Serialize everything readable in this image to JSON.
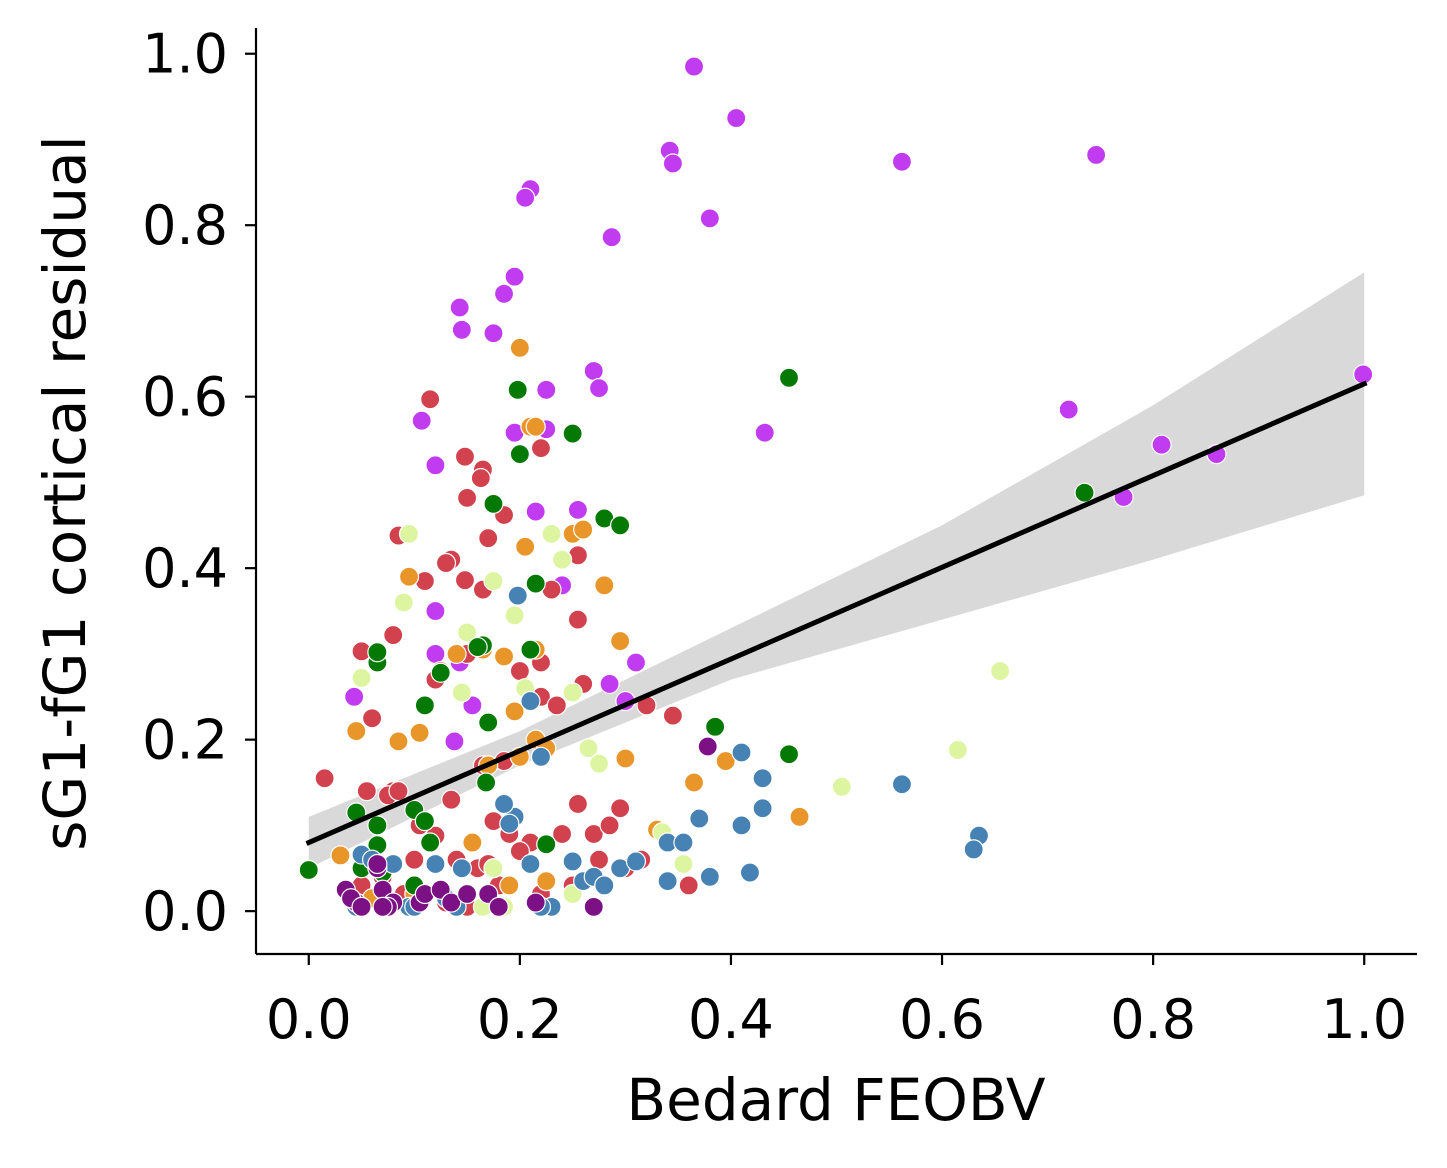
{
  "chart_data": {
    "type": "scatter",
    "title": "",
    "xlabel": "Bedard FEOBV",
    "ylabel": "sG1-fG1 cortical residual",
    "xlim": [
      -0.05,
      1.05
    ],
    "ylim": [
      -0.05,
      1.03
    ],
    "xticks": [
      "0.0",
      "0.2",
      "0.4",
      "0.6",
      "0.8",
      "1.0"
    ],
    "yticks": [
      "0.0",
      "0.2",
      "0.4",
      "0.6",
      "0.8",
      "1.0"
    ],
    "grid": false,
    "legend": "none",
    "regression": {
      "color": "#000000",
      "band_color": "#d9d9d9",
      "line": [
        [
          0.0,
          0.08
        ],
        [
          1.0,
          0.615
        ]
      ],
      "band_upper": [
        [
          0.0,
          0.11
        ],
        [
          0.2,
          0.21
        ],
        [
          0.4,
          0.33
        ],
        [
          0.6,
          0.45
        ],
        [
          0.8,
          0.59
        ],
        [
          1.0,
          0.745
        ]
      ],
      "band_lower": [
        [
          0.0,
          0.05
        ],
        [
          0.2,
          0.17
        ],
        [
          0.4,
          0.27
        ],
        [
          0.6,
          0.34
        ],
        [
          0.8,
          0.41
        ],
        [
          1.0,
          0.485
        ]
      ]
    },
    "series": [
      {
        "color": "#c13bf0",
        "points": [
          [
            0.365,
            0.985
          ],
          [
            0.405,
            0.925
          ],
          [
            0.342,
            0.887
          ],
          [
            0.345,
            0.872
          ],
          [
            0.562,
            0.874
          ],
          [
            0.746,
            0.882
          ],
          [
            0.21,
            0.842
          ],
          [
            0.205,
            0.832
          ],
          [
            0.38,
            0.808
          ],
          [
            0.287,
            0.786
          ],
          [
            0.195,
            0.74
          ],
          [
            0.185,
            0.72
          ],
          [
            0.143,
            0.704
          ],
          [
            0.145,
            0.678
          ],
          [
            0.175,
            0.674
          ],
          [
            0.27,
            0.63
          ],
          [
            0.275,
            0.61
          ],
          [
            0.225,
            0.608
          ],
          [
            0.72,
            0.585
          ],
          [
            0.107,
            0.572
          ],
          [
            0.432,
            0.558
          ],
          [
            0.195,
            0.558
          ],
          [
            0.225,
            0.562
          ],
          [
            0.808,
            0.544
          ],
          [
            0.86,
            0.533
          ],
          [
            0.772,
            0.483
          ],
          [
            0.255,
            0.468
          ],
          [
            0.215,
            0.466
          ],
          [
            0.12,
            0.52
          ],
          [
            0.12,
            0.35
          ],
          [
            0.12,
            0.3
          ],
          [
            0.143,
            0.29
          ],
          [
            0.165,
            0.31
          ],
          [
            0.155,
            0.24
          ],
          [
            0.043,
            0.25
          ],
          [
            0.285,
            0.265
          ],
          [
            0.3,
            0.245
          ],
          [
            0.31,
            0.29
          ],
          [
            0.138,
            0.198
          ],
          [
            0.999,
            0.626
          ],
          [
            0.24,
            0.38
          ]
        ]
      },
      {
        "color": "#d1424e",
        "points": [
          [
            0.115,
            0.597
          ],
          [
            0.148,
            0.53
          ],
          [
            0.165,
            0.515
          ],
          [
            0.163,
            0.505
          ],
          [
            0.15,
            0.482
          ],
          [
            0.185,
            0.462
          ],
          [
            0.22,
            0.54
          ],
          [
            0.17,
            0.435
          ],
          [
            0.085,
            0.438
          ],
          [
            0.11,
            0.385
          ],
          [
            0.148,
            0.386
          ],
          [
            0.135,
            0.41
          ],
          [
            0.13,
            0.406
          ],
          [
            0.165,
            0.375
          ],
          [
            0.23,
            0.375
          ],
          [
            0.255,
            0.415
          ],
          [
            0.255,
            0.34
          ],
          [
            0.08,
            0.322
          ],
          [
            0.05,
            0.303
          ],
          [
            0.2,
            0.28
          ],
          [
            0.22,
            0.29
          ],
          [
            0.26,
            0.265
          ],
          [
            0.15,
            0.3
          ],
          [
            0.125,
            0.28
          ],
          [
            0.12,
            0.27
          ],
          [
            0.06,
            0.225
          ],
          [
            0.22,
            0.25
          ],
          [
            0.32,
            0.24
          ],
          [
            0.345,
            0.228
          ],
          [
            0.235,
            0.24
          ],
          [
            0.015,
            0.155
          ],
          [
            0.08,
            0.14
          ],
          [
            0.055,
            0.14
          ],
          [
            0.075,
            0.135
          ],
          [
            0.085,
            0.14
          ],
          [
            0.135,
            0.13
          ],
          [
            0.165,
            0.17
          ],
          [
            0.185,
            0.175
          ],
          [
            0.22,
            0.18
          ],
          [
            0.255,
            0.125
          ],
          [
            0.27,
            0.09
          ],
          [
            0.285,
            0.1
          ],
          [
            0.295,
            0.12
          ],
          [
            0.24,
            0.09
          ],
          [
            0.21,
            0.08
          ],
          [
            0.2,
            0.07
          ],
          [
            0.105,
            0.1
          ],
          [
            0.1,
            0.06
          ],
          [
            0.12,
            0.088
          ],
          [
            0.14,
            0.06
          ],
          [
            0.16,
            0.05
          ],
          [
            0.175,
            0.105
          ],
          [
            0.19,
            0.09
          ],
          [
            0.05,
            0.03
          ],
          [
            0.07,
            0.04
          ],
          [
            0.09,
            0.02
          ],
          [
            0.11,
            0.02
          ],
          [
            0.13,
            0.01
          ],
          [
            0.15,
            0.005
          ],
          [
            0.18,
            0.03
          ],
          [
            0.22,
            0.02
          ],
          [
            0.25,
            0.03
          ],
          [
            0.275,
            0.06
          ],
          [
            0.3,
            0.05
          ],
          [
            0.315,
            0.06
          ],
          [
            0.36,
            0.03
          ],
          [
            0.17,
            0.055
          ]
        ]
      },
      {
        "color": "#e8962a",
        "points": [
          [
            0.2,
            0.657
          ],
          [
            0.21,
            0.565
          ],
          [
            0.215,
            0.565
          ],
          [
            0.25,
            0.44
          ],
          [
            0.26,
            0.445
          ],
          [
            0.205,
            0.425
          ],
          [
            0.095,
            0.39
          ],
          [
            0.28,
            0.38
          ],
          [
            0.295,
            0.315
          ],
          [
            0.215,
            0.305
          ],
          [
            0.185,
            0.297
          ],
          [
            0.14,
            0.3
          ],
          [
            0.165,
            0.305
          ],
          [
            0.045,
            0.21
          ],
          [
            0.085,
            0.198
          ],
          [
            0.105,
            0.208
          ],
          [
            0.195,
            0.233
          ],
          [
            0.215,
            0.2
          ],
          [
            0.225,
            0.19
          ],
          [
            0.3,
            0.178
          ],
          [
            0.365,
            0.15
          ],
          [
            0.395,
            0.175
          ],
          [
            0.465,
            0.11
          ],
          [
            0.33,
            0.095
          ],
          [
            0.17,
            0.17
          ],
          [
            0.2,
            0.18
          ],
          [
            0.03,
            0.065
          ],
          [
            0.155,
            0.08
          ],
          [
            0.19,
            0.03
          ],
          [
            0.225,
            0.035
          ],
          [
            0.1,
            0.02
          ],
          [
            0.06,
            0.015
          ]
        ]
      },
      {
        "color": "#ddf5a0",
        "points": [
          [
            0.095,
            0.44
          ],
          [
            0.23,
            0.44
          ],
          [
            0.24,
            0.41
          ],
          [
            0.175,
            0.385
          ],
          [
            0.195,
            0.345
          ],
          [
            0.09,
            0.36
          ],
          [
            0.15,
            0.325
          ],
          [
            0.145,
            0.255
          ],
          [
            0.05,
            0.272
          ],
          [
            0.205,
            0.26
          ],
          [
            0.25,
            0.255
          ],
          [
            0.265,
            0.19
          ],
          [
            0.275,
            0.172
          ],
          [
            0.655,
            0.28
          ],
          [
            0.615,
            0.188
          ],
          [
            0.505,
            0.145
          ],
          [
            0.335,
            0.092
          ],
          [
            0.355,
            0.055
          ],
          [
            0.175,
            0.05
          ],
          [
            0.165,
            0.005
          ],
          [
            0.185,
            0.005
          ],
          [
            0.25,
            0.02
          ]
        ]
      },
      {
        "color": "#047a04",
        "points": [
          [
            0.198,
            0.608
          ],
          [
            0.455,
            0.622
          ],
          [
            0.2,
            0.533
          ],
          [
            0.25,
            0.557
          ],
          [
            0.175,
            0.475
          ],
          [
            0.28,
            0.458
          ],
          [
            0.295,
            0.45
          ],
          [
            0.215,
            0.382
          ],
          [
            0.165,
            0.31
          ],
          [
            0.16,
            0.308
          ],
          [
            0.21,
            0.305
          ],
          [
            0.065,
            0.29
          ],
          [
            0.065,
            0.302
          ],
          [
            0.125,
            0.278
          ],
          [
            0.11,
            0.24
          ],
          [
            0.17,
            0.22
          ],
          [
            0.385,
            0.215
          ],
          [
            0.455,
            0.183
          ],
          [
            0.168,
            0.15
          ],
          [
            0.045,
            0.115
          ],
          [
            0.065,
            0.1
          ],
          [
            0.1,
            0.118
          ],
          [
            0.11,
            0.105
          ],
          [
            0.115,
            0.08
          ],
          [
            0.065,
            0.077
          ],
          [
            0.05,
            0.05
          ],
          [
            0.0,
            0.048
          ],
          [
            0.1,
            0.03
          ],
          [
            0.225,
            0.078
          ],
          [
            0.735,
            0.488
          ],
          [
            0.07,
            0.045
          ]
        ]
      },
      {
        "color": "#4682b4",
        "points": [
          [
            0.198,
            0.368
          ],
          [
            0.21,
            0.245
          ],
          [
            0.22,
            0.18
          ],
          [
            0.195,
            0.11
          ],
          [
            0.185,
            0.125
          ],
          [
            0.19,
            0.102
          ],
          [
            0.21,
            0.055
          ],
          [
            0.25,
            0.058
          ],
          [
            0.26,
            0.035
          ],
          [
            0.27,
            0.04
          ],
          [
            0.28,
            0.03
          ],
          [
            0.295,
            0.05
          ],
          [
            0.31,
            0.058
          ],
          [
            0.34,
            0.08
          ],
          [
            0.355,
            0.08
          ],
          [
            0.37,
            0.108
          ],
          [
            0.34,
            0.035
          ],
          [
            0.38,
            0.04
          ],
          [
            0.41,
            0.185
          ],
          [
            0.41,
            0.1
          ],
          [
            0.43,
            0.155
          ],
          [
            0.43,
            0.12
          ],
          [
            0.418,
            0.045
          ],
          [
            0.562,
            0.148
          ],
          [
            0.635,
            0.088
          ],
          [
            0.63,
            0.072
          ],
          [
            0.05,
            0.066
          ],
          [
            0.06,
            0.06
          ],
          [
            0.08,
            0.055
          ],
          [
            0.12,
            0.055
          ],
          [
            0.145,
            0.05
          ],
          [
            0.13,
            0.015
          ],
          [
            0.095,
            0.005
          ],
          [
            0.23,
            0.005
          ],
          [
            0.22,
            0.005
          ],
          [
            0.045,
            0.005
          ],
          [
            0.1,
            0.005
          ],
          [
            0.14,
            0.005
          ]
        ]
      },
      {
        "color": "#7b1185",
        "points": [
          [
            0.378,
            0.192
          ],
          [
            0.035,
            0.025
          ],
          [
            0.045,
            0.01
          ],
          [
            0.04,
            0.015
          ],
          [
            0.065,
            0.05
          ],
          [
            0.07,
            0.025
          ],
          [
            0.08,
            0.01
          ],
          [
            0.105,
            0.01
          ],
          [
            0.11,
            0.02
          ],
          [
            0.125,
            0.025
          ],
          [
            0.135,
            0.01
          ],
          [
            0.15,
            0.02
          ],
          [
            0.17,
            0.02
          ],
          [
            0.18,
            0.005
          ],
          [
            0.215,
            0.01
          ],
          [
            0.27,
            0.005
          ],
          [
            0.05,
            0.005
          ],
          [
            0.075,
            0.005
          ],
          [
            0.07,
            0.005
          ],
          [
            0.065,
            0.055
          ]
        ]
      }
    ]
  }
}
